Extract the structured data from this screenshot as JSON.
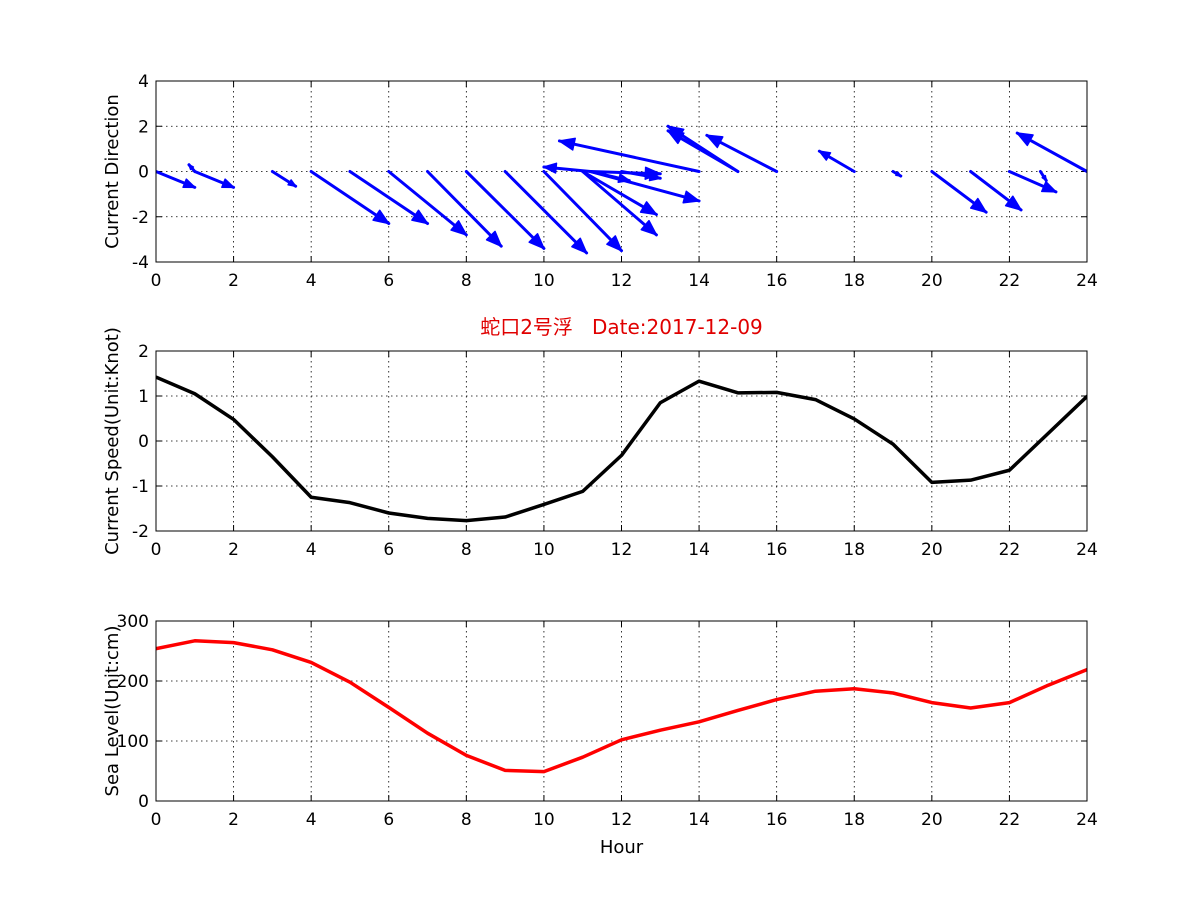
{
  "chart_data": [
    {
      "type": "quiver",
      "title": "",
      "xlabel": "",
      "ylabel": "Current Direction",
      "xlim": [
        0,
        24
      ],
      "ylim": [
        -4,
        4
      ],
      "xticks": [
        0,
        2,
        4,
        6,
        8,
        10,
        12,
        14,
        16,
        18,
        20,
        22,
        24
      ],
      "yticks": [
        -4,
        -2,
        0,
        2,
        4
      ],
      "grid": true,
      "color": "#0000ff",
      "vectors": [
        {
          "x": 0,
          "u": 1.0,
          "v": -0.7
        },
        {
          "x": 1,
          "u": -0.15,
          "v": 0.3
        },
        {
          "x": 1,
          "u": 1.0,
          "v": -0.7
        },
        {
          "x": 3,
          "u": 0.6,
          "v": -0.65
        },
        {
          "x": 4,
          "u": 2.0,
          "v": -2.3
        },
        {
          "x": 5,
          "u": 2.0,
          "v": -2.3
        },
        {
          "x": 6,
          "u": 2.0,
          "v": -2.8
        },
        {
          "x": 7,
          "u": 1.9,
          "v": -3.3
        },
        {
          "x": 8,
          "u": 2.0,
          "v": -3.4
        },
        {
          "x": 9,
          "u": 2.1,
          "v": -3.6
        },
        {
          "x": 10,
          "u": 2.0,
          "v": -3.5
        },
        {
          "x": 11,
          "u": 1.9,
          "v": -1.9
        },
        {
          "x": 11,
          "u": 1.9,
          "v": -2.8
        },
        {
          "x": 11.2,
          "u": -1.2,
          "v": 0.2
        },
        {
          "x": 11.2,
          "u": 1.0,
          "v": -0.4
        },
        {
          "x": 11.2,
          "u": 1.8,
          "v": -0.1
        },
        {
          "x": 11.2,
          "u": 2.8,
          "v": -1.3
        },
        {
          "x": 12,
          "u": 1.0,
          "v": -0.3
        },
        {
          "x": 14,
          "u": -3.6,
          "v": 1.35
        },
        {
          "x": 15,
          "u": -1.8,
          "v": 1.8
        },
        {
          "x": 15,
          "u": -1.8,
          "v": 2.0
        },
        {
          "x": 16,
          "u": -1.8,
          "v": 1.6
        },
        {
          "x": 18,
          "u": -0.9,
          "v": 0.9
        },
        {
          "x": 19,
          "u": 0.2,
          "v": -0.2
        },
        {
          "x": 20,
          "u": 1.4,
          "v": -1.8
        },
        {
          "x": 21,
          "u": 1.3,
          "v": -1.7
        },
        {
          "x": 22,
          "u": 1.2,
          "v": -0.9
        },
        {
          "x": 22.8,
          "u": 0.15,
          "v": -0.4
        },
        {
          "x": 24,
          "u": -1.8,
          "v": 1.7
        }
      ]
    },
    {
      "type": "line",
      "title": "蛇口2号浮   Date:2017-12-09",
      "title_color": "#e00000",
      "xlabel": "",
      "ylabel": "Current Speed(Unit:Knot)",
      "xlim": [
        0,
        24
      ],
      "ylim": [
        -2,
        2
      ],
      "xticks": [
        0,
        2,
        4,
        6,
        8,
        10,
        12,
        14,
        16,
        18,
        20,
        22,
        24
      ],
      "yticks": [
        -2,
        -1,
        0,
        1,
        2
      ],
      "grid": true,
      "series": [
        {
          "color": "#000000",
          "x": [
            0,
            1,
            2,
            3,
            4,
            5,
            6,
            7,
            8,
            9,
            10,
            11,
            12,
            13,
            14,
            15,
            16,
            17,
            18,
            19,
            20,
            21,
            22,
            23,
            24
          ],
          "y": [
            1.42,
            1.05,
            0.48,
            -0.35,
            -1.25,
            -1.37,
            -1.6,
            -1.72,
            -1.77,
            -1.69,
            -1.41,
            -1.12,
            -0.32,
            0.85,
            1.33,
            1.07,
            1.08,
            0.92,
            0.49,
            -0.07,
            -0.92,
            -0.87,
            -0.65,
            0.17,
            0.99
          ]
        }
      ]
    },
    {
      "type": "line",
      "title": "",
      "xlabel": "Hour",
      "ylabel": "Sea Level(Unit:cm)",
      "xlim": [
        0,
        24
      ],
      "ylim": [
        0,
        300
      ],
      "xticks": [
        0,
        2,
        4,
        6,
        8,
        10,
        12,
        14,
        16,
        18,
        20,
        22,
        24
      ],
      "yticks": [
        0,
        100,
        200,
        300
      ],
      "grid": true,
      "series": [
        {
          "color": "#ff0000",
          "x": [
            0,
            1,
            2,
            3,
            4,
            5,
            6,
            7,
            8,
            9,
            10,
            11,
            12,
            13,
            14,
            15,
            16,
            17,
            18,
            19,
            20,
            21,
            22,
            23,
            24
          ],
          "y": [
            254,
            267,
            264,
            252,
            231,
            198,
            156,
            113,
            76,
            51,
            49,
            73,
            102,
            118,
            132,
            151,
            169,
            183,
            187,
            180,
            164,
            155,
            164,
            193,
            219
          ]
        }
      ]
    }
  ]
}
